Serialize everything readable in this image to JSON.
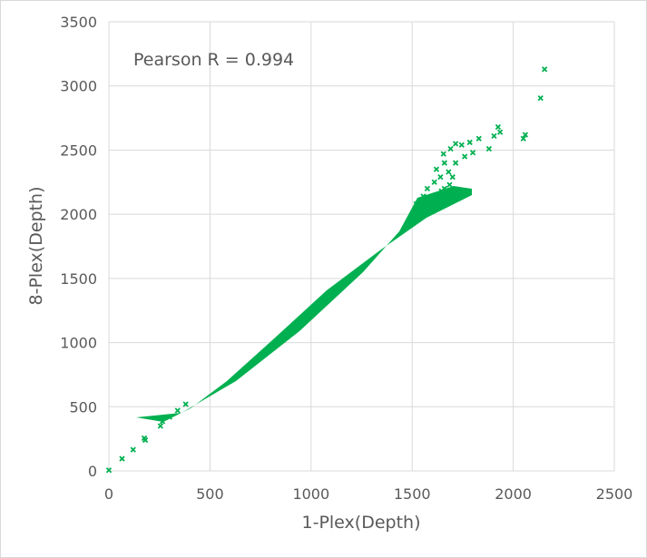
{
  "chart_data": {
    "type": "scatter",
    "title": "",
    "xlabel": "1-Plex(Depth)",
    "ylabel": "8-Plex(Depth)",
    "xlim": [
      0,
      2500
    ],
    "ylim": [
      0,
      3500
    ],
    "x_ticks": [
      0,
      500,
      1000,
      1500,
      2000,
      2500
    ],
    "y_ticks": [
      0,
      500,
      1000,
      1500,
      2000,
      2500,
      3000,
      3500
    ],
    "grid": true,
    "legend": "none",
    "marker": "x",
    "color": "#00b050",
    "annotation": "Pearson R = 0.994",
    "series": [
      {
        "points": [
          [
            0,
            5
          ],
          [
            65,
            95
          ],
          [
            120,
            165
          ],
          [
            175,
            255
          ],
          [
            180,
            240
          ],
          [
            255,
            350
          ],
          [
            265,
            385
          ],
          [
            300,
            420
          ],
          [
            340,
            470
          ],
          [
            380,
            520
          ],
          [
            2135,
            2905
          ],
          [
            2155,
            3130
          ],
          [
            2050,
            2590
          ],
          [
            2060,
            2620
          ],
          [
            1925,
            2680
          ],
          [
            1935,
            2640
          ],
          [
            1905,
            2610
          ],
          [
            1830,
            2590
          ],
          [
            1785,
            2560
          ],
          [
            1745,
            2540
          ],
          [
            1715,
            2550
          ],
          [
            1800,
            2480
          ],
          [
            1760,
            2450
          ],
          [
            1880,
            2510
          ],
          [
            1690,
            2510
          ],
          [
            1715,
            2400
          ],
          [
            1655,
            2470
          ],
          [
            1680,
            2330
          ],
          [
            1700,
            2290
          ],
          [
            1640,
            2290
          ],
          [
            1620,
            2350
          ],
          [
            1660,
            2200
          ],
          [
            1610,
            2250
          ],
          [
            1575,
            2200
          ],
          [
            1555,
            2140
          ],
          [
            1520,
            2080
          ],
          [
            1600,
            2080
          ],
          [
            1645,
            2180
          ],
          [
            1685,
            2230
          ],
          [
            1660,
            2400
          ]
        ]
      }
    ]
  }
}
